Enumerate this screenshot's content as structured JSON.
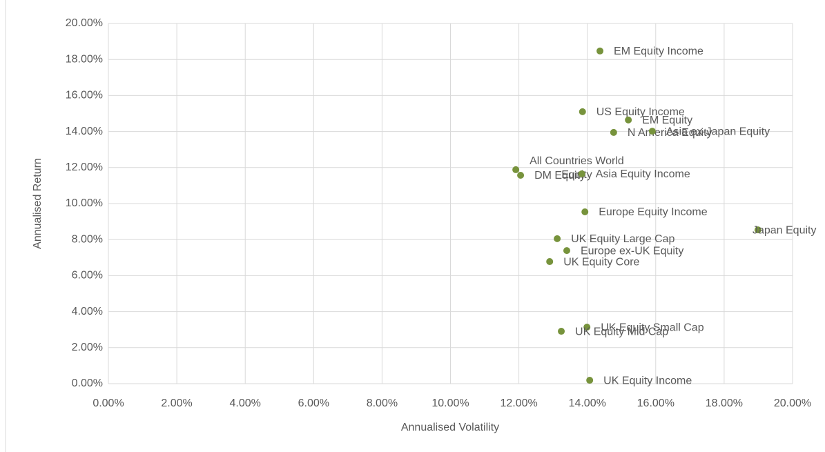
{
  "chart_data": {
    "type": "scatter",
    "x_label": "Annualised Volatility",
    "y_label": "Annualised Return",
    "color": "#77933c",
    "grid": true,
    "labels": [
      "EM Equity Income",
      "US Equity Income",
      "EM Equity",
      "N America Equity",
      "Asia ex-Japan Equity",
      [
        "All Countries World",
        "Equity"
      ],
      "DM Equity",
      "Asia Equity Income",
      "Europe Equity Income",
      "Japan Equity",
      "UK Equity Large Cap",
      "Europe ex-UK Equity",
      "UK Equity Core",
      "UK Equity Small Cap",
      "UK Equity Mid Cap",
      "UK Equity Income"
    ],
    "x": [
      14.37,
      13.86,
      15.2,
      14.77,
      15.9,
      11.91,
      12.05,
      13.84,
      13.93,
      18.99,
      13.12,
      13.4,
      12.9,
      13.99,
      13.24,
      14.07
    ],
    "y": [
      18.47,
      15.1,
      14.64,
      13.95,
      14.02,
      11.88,
      11.57,
      11.65,
      9.54,
      8.54,
      8.05,
      7.39,
      6.78,
      3.14,
      2.91,
      0.19
    ],
    "xlim": [
      0,
      20
    ],
    "ylim": [
      0,
      20
    ],
    "xticks": [
      {
        "value": 0,
        "label": "0.00%"
      },
      {
        "value": 2,
        "label": "2.00%"
      },
      {
        "value": 4,
        "label": "4.00%"
      },
      {
        "value": 6,
        "label": "6.00%"
      },
      {
        "value": 8,
        "label": "8.00%"
      },
      {
        "value": 10,
        "label": "10.00%"
      },
      {
        "value": 12,
        "label": "12.00%"
      },
      {
        "value": 14,
        "label": "14.00%"
      },
      {
        "value": 16,
        "label": "16.00%"
      },
      {
        "value": 18,
        "label": "18.00%"
      },
      {
        "value": 20,
        "label": "20.00%"
      }
    ],
    "yticks": [
      {
        "value": 0,
        "label": "0.00%"
      },
      {
        "value": 2,
        "label": "2.00%"
      },
      {
        "value": 4,
        "label": "4.00%"
      },
      {
        "value": 6,
        "label": "6.00%"
      },
      {
        "value": 8,
        "label": "8.00%"
      },
      {
        "value": 10,
        "label": "10.00%"
      },
      {
        "value": 12,
        "label": "12.00%"
      },
      {
        "value": 14,
        "label": "14.00%"
      },
      {
        "value": 16,
        "label": "16.00%"
      },
      {
        "value": 18,
        "label": "18.00%"
      },
      {
        "value": 20,
        "label": "20.00%"
      }
    ]
  }
}
